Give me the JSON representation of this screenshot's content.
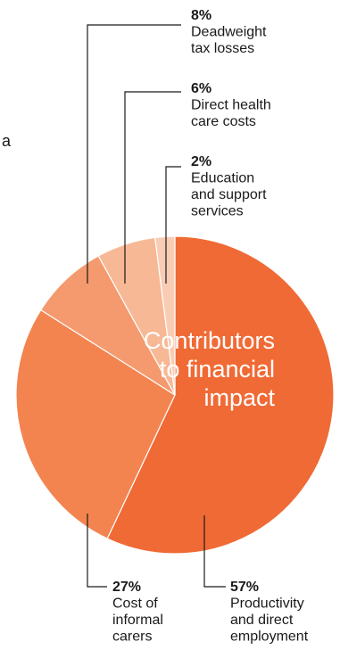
{
  "stray_text": "a",
  "chart_data": {
    "type": "pie",
    "title": "",
    "center_label": [
      "Contributors",
      "to financial",
      "impact"
    ],
    "slices": [
      {
        "percent_label": "57%",
        "value": 57,
        "label_lines": [
          "Productivity",
          "and direct",
          "employment"
        ],
        "color": "#f06a35"
      },
      {
        "percent_label": "27%",
        "value": 27,
        "label_lines": [
          "Cost of",
          "informal",
          "carers"
        ],
        "color": "#f3844f"
      },
      {
        "percent_label": "8%",
        "value": 8,
        "label_lines": [
          "Deadweight",
          "tax losses"
        ],
        "color": "#f49a6e"
      },
      {
        "percent_label": "6%",
        "value": 6,
        "label_lines": [
          "Direct health",
          "care costs"
        ],
        "color": "#f7b895"
      },
      {
        "percent_label": "2%",
        "value": 2,
        "label_lines": [
          "Education",
          "and support",
          "services"
        ],
        "color": "#f9cdb4"
      }
    ],
    "start_angle_deg": 0,
    "direction": "clockwise",
    "colors": {
      "leader_line": "#1a1a1a",
      "text": "#1a1a1a",
      "center_text": "#ffffff",
      "separator": "#ffffff"
    }
  }
}
